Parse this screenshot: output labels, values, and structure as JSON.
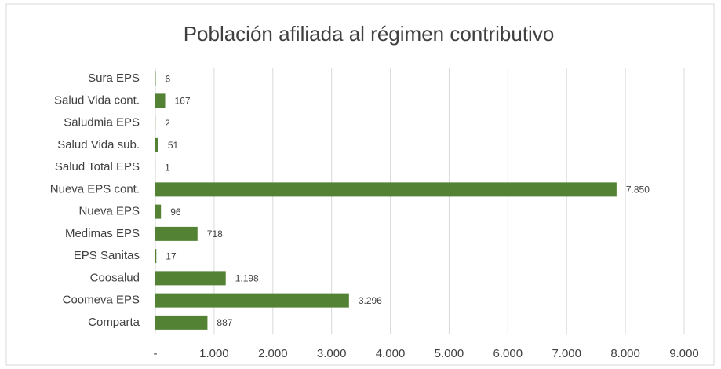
{
  "chart_data": {
    "type": "bar",
    "orientation": "horizontal",
    "title": "Población afiliada al régimen contributivo",
    "categories": [
      "Sura EPS",
      "Salud Vida cont.",
      "Saludmia EPS",
      "Salud Vida sub.",
      "Salud Total EPS",
      "Nueva EPS cont.",
      "Nueva EPS",
      "Medimas EPS",
      "EPS Sanitas",
      "Coosalud",
      "Coomeva EPS",
      "Comparta"
    ],
    "values": [
      6,
      167,
      2,
      51,
      1,
      7850,
      96,
      718,
      17,
      1198,
      3296,
      887
    ],
    "value_labels": [
      "6",
      "167",
      "2",
      "51",
      "1",
      "7.850",
      "96",
      "718",
      "17",
      "1.198",
      "3.296",
      "887"
    ],
    "color": "#548235",
    "xlim": [
      0,
      9000
    ],
    "xticks": [
      {
        "value": 0,
        "label": "-"
      },
      {
        "value": 1000,
        "label": "1.000"
      },
      {
        "value": 2000,
        "label": "2.000"
      },
      {
        "value": 3000,
        "label": "3.000"
      },
      {
        "value": 4000,
        "label": "4.000"
      },
      {
        "value": 5000,
        "label": "5.000"
      },
      {
        "value": 6000,
        "label": "6.000"
      },
      {
        "value": 7000,
        "label": "7.000"
      },
      {
        "value": 8000,
        "label": "8.000"
      },
      {
        "value": 9000,
        "label": "9.000"
      }
    ],
    "grid": true
  }
}
